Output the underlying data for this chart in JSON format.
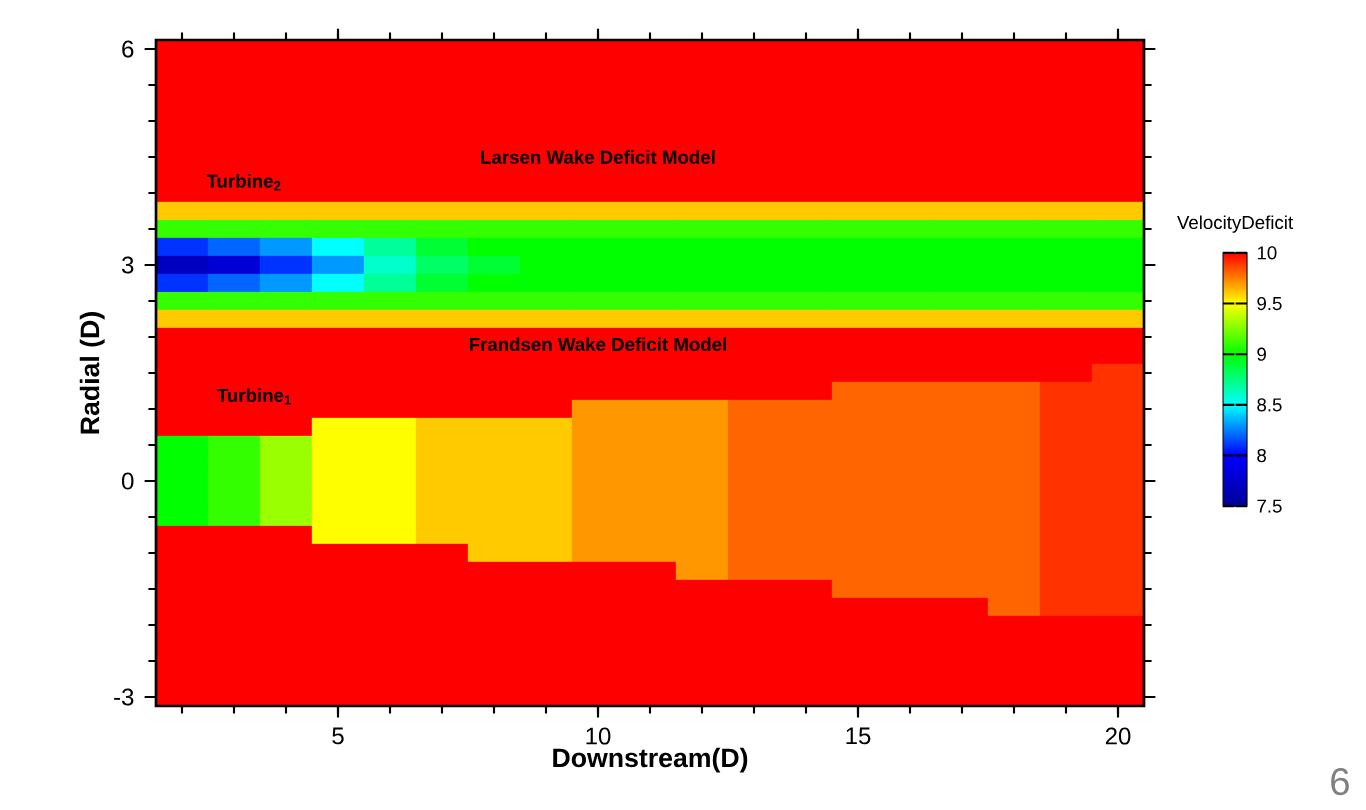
{
  "chart_data": {
    "type": "heatmap",
    "xlabel": "Downstream(D)",
    "ylabel": "Radial (D)",
    "clabel": "VelocityDeficit",
    "clim": [
      7.5,
      10
    ],
    "cticks": [
      7.5,
      8,
      8.5,
      9,
      9.5,
      10
    ],
    "categories": [
      null,
      null,
      null,
      "5",
      null,
      null,
      null,
      null,
      "10",
      null,
      null,
      null,
      null,
      "15",
      null,
      null,
      null,
      null,
      "20"
    ],
    "y_categories": [
      "6",
      null,
      null,
      null,
      null,
      null,
      null,
      null,
      null,
      null,
      null,
      null,
      "3",
      null,
      null,
      null,
      null,
      null,
      null,
      null,
      null,
      null,
      null,
      null,
      "0",
      null,
      null,
      null,
      null,
      null,
      null,
      null,
      null,
      null,
      null,
      null,
      "-3"
    ],
    "cells": [
      [
        10,
        10,
        10,
        10,
        10,
        10,
        10,
        10,
        10,
        10,
        10,
        10,
        10,
        10,
        10,
        10,
        10,
        10,
        10
      ],
      [
        10,
        10,
        10,
        10,
        10,
        10,
        10,
        10,
        10,
        10,
        10,
        10,
        10,
        10,
        10,
        10,
        10,
        10,
        10
      ],
      [
        10,
        10,
        10,
        10,
        10,
        10,
        10,
        10,
        10,
        10,
        10,
        10,
        10,
        10,
        10,
        10,
        10,
        10,
        10
      ],
      [
        10,
        10,
        10,
        10,
        10,
        10,
        10,
        10,
        10,
        10,
        10,
        10,
        10,
        10,
        10,
        10,
        10,
        10,
        10
      ],
      [
        10,
        10,
        10,
        10,
        10,
        10,
        10,
        10,
        10,
        10,
        10,
        10,
        10,
        10,
        10,
        10,
        10,
        10,
        10
      ],
      [
        10,
        10,
        10,
        10,
        10,
        10,
        10,
        10,
        10,
        10,
        10,
        10,
        10,
        10,
        10,
        10,
        10,
        10,
        10
      ],
      [
        10,
        10,
        10,
        10,
        10,
        10,
        10,
        10,
        10,
        10,
        10,
        10,
        10,
        10,
        10,
        10,
        10,
        10,
        10
      ],
      [
        10,
        10,
        10,
        10,
        10,
        10,
        10,
        10,
        10,
        10,
        10,
        10,
        10,
        10,
        10,
        10,
        10,
        10,
        10
      ],
      [
        10,
        10,
        10,
        10,
        10,
        10,
        10,
        10,
        10,
        10,
        10,
        10,
        10,
        10,
        10,
        10,
        10,
        10,
        10
      ],
      [
        9.6,
        9.6,
        9.6,
        9.6,
        9.6,
        9.6,
        9.6,
        9.6,
        9.6,
        9.6,
        9.6,
        9.6,
        9.6,
        9.6,
        9.6,
        9.6,
        9.6,
        9.6,
        9.6
      ],
      [
        9.1,
        9.1,
        9.1,
        9.1,
        9.1,
        9.1,
        9.1,
        9.1,
        9.1,
        9.1,
        9.1,
        9.1,
        9.1,
        9.1,
        9.1,
        9.1,
        9.1,
        9.1,
        9.1
      ],
      [
        8.1,
        8.2,
        8.3,
        8.5,
        8.7,
        8.9,
        9,
        9,
        9,
        9,
        9,
        9,
        9,
        9,
        9,
        9,
        9,
        9,
        9
      ],
      [
        7.7,
        7.8,
        8.1,
        8.3,
        8.6,
        8.8,
        8.9,
        9,
        9,
        9,
        9,
        9,
        9,
        9,
        9,
        9,
        9,
        9,
        9
      ],
      [
        8.1,
        8.2,
        8.3,
        8.5,
        8.7,
        8.9,
        9,
        9,
        9,
        9,
        9,
        9,
        9,
        9,
        9,
        9,
        9,
        9,
        9
      ],
      [
        9.1,
        9.1,
        9.1,
        9.1,
        9.1,
        9.1,
        9.1,
        9.1,
        9.1,
        9.1,
        9.1,
        9.1,
        9.1,
        9.1,
        9.1,
        9.1,
        9.1,
        9.1,
        9.1
      ],
      [
        9.6,
        9.6,
        9.6,
        9.6,
        9.6,
        9.6,
        9.6,
        9.6,
        9.6,
        9.6,
        9.6,
        9.6,
        9.6,
        9.6,
        9.6,
        9.6,
        9.6,
        9.6,
        9.6
      ],
      [
        10,
        10,
        10,
        10,
        10,
        10,
        10,
        10,
        10,
        10,
        10,
        10,
        10,
        10,
        10,
        10,
        10,
        10,
        10
      ],
      [
        10,
        10,
        10,
        10,
        10,
        10,
        10,
        10,
        10,
        10,
        10,
        10,
        10,
        10,
        10,
        10,
        10,
        10,
        10
      ],
      [
        10,
        10,
        10,
        10,
        10,
        10,
        10,
        10,
        10,
        10,
        10,
        10,
        10,
        10,
        10,
        10,
        10,
        10,
        9.9
      ],
      [
        10,
        10,
        10,
        10,
        10,
        10,
        10,
        10,
        10,
        10,
        10,
        10,
        10,
        9.8,
        9.8,
        9.8,
        9.8,
        9.9,
        9.9
      ],
      [
        10,
        10,
        10,
        10,
        10,
        10,
        10,
        10,
        9.7,
        9.7,
        9.7,
        9.8,
        9.8,
        9.8,
        9.8,
        9.8,
        9.8,
        9.9,
        9.9
      ],
      [
        10,
        10,
        10,
        9.5,
        9.5,
        9.6,
        9.6,
        9.6,
        9.7,
        9.7,
        9.7,
        9.8,
        9.8,
        9.8,
        9.8,
        9.8,
        9.8,
        9.9,
        9.9
      ],
      [
        9,
        9.1,
        9.3,
        9.5,
        9.5,
        9.6,
        9.6,
        9.6,
        9.7,
        9.7,
        9.7,
        9.8,
        9.8,
        9.8,
        9.8,
        9.8,
        9.8,
        9.9,
        9.9
      ],
      [
        9,
        9.1,
        9.3,
        9.5,
        9.5,
        9.6,
        9.6,
        9.6,
        9.7,
        9.7,
        9.7,
        9.8,
        9.8,
        9.8,
        9.8,
        9.8,
        9.8,
        9.9,
        9.9
      ],
      [
        9,
        9.1,
        9.3,
        9.5,
        9.5,
        9.6,
        9.6,
        9.6,
        9.7,
        9.7,
        9.7,
        9.8,
        9.8,
        9.8,
        9.8,
        9.8,
        9.8,
        9.9,
        9.9
      ],
      [
        9,
        9.1,
        9.3,
        9.5,
        9.5,
        9.6,
        9.6,
        9.6,
        9.7,
        9.7,
        9.7,
        9.8,
        9.8,
        9.8,
        9.8,
        9.8,
        9.8,
        9.9,
        9.9
      ],
      [
        9,
        9.1,
        9.3,
        9.5,
        9.5,
        9.6,
        9.6,
        9.6,
        9.7,
        9.7,
        9.7,
        9.8,
        9.8,
        9.8,
        9.8,
        9.8,
        9.8,
        9.9,
        9.9
      ],
      [
        10,
        10,
        10,
        9.5,
        9.5,
        9.6,
        9.6,
        9.6,
        9.7,
        9.7,
        9.7,
        9.8,
        9.8,
        9.8,
        9.8,
        9.8,
        9.8,
        9.9,
        9.9
      ],
      [
        10,
        10,
        10,
        10,
        10,
        10,
        9.6,
        9.6,
        9.7,
        9.7,
        9.7,
        9.8,
        9.8,
        9.8,
        9.8,
        9.8,
        9.8,
        9.9,
        9.9
      ],
      [
        10,
        10,
        10,
        10,
        10,
        10,
        10,
        10,
        10,
        10,
        9.7,
        9.8,
        9.8,
        9.8,
        9.8,
        9.8,
        9.8,
        9.9,
        9.9
      ],
      [
        10,
        10,
        10,
        10,
        10,
        10,
        10,
        10,
        10,
        10,
        10,
        10,
        10,
        9.8,
        9.8,
        9.8,
        9.8,
        9.9,
        9.9
      ],
      [
        10,
        10,
        10,
        10,
        10,
        10,
        10,
        10,
        10,
        10,
        10,
        10,
        10,
        10,
        10,
        10,
        9.8,
        9.9,
        9.9
      ],
      [
        10,
        10,
        10,
        10,
        10,
        10,
        10,
        10,
        10,
        10,
        10,
        10,
        10,
        10,
        10,
        10,
        10,
        10,
        10
      ],
      [
        10,
        10,
        10,
        10,
        10,
        10,
        10,
        10,
        10,
        10,
        10,
        10,
        10,
        10,
        10,
        10,
        10,
        10,
        10
      ],
      [
        10,
        10,
        10,
        10,
        10,
        10,
        10,
        10,
        10,
        10,
        10,
        10,
        10,
        10,
        10,
        10,
        10,
        10,
        10
      ],
      [
        10,
        10,
        10,
        10,
        10,
        10,
        10,
        10,
        10,
        10,
        10,
        10,
        10,
        10,
        10,
        10,
        10,
        10,
        10
      ],
      [
        10,
        10,
        10,
        10,
        10,
        10,
        10,
        10,
        10,
        10,
        10,
        10,
        10,
        10,
        10,
        10,
        10,
        10,
        10
      ]
    ],
    "annotations": [
      "Larsen Wake Deficit Model",
      "Frandsen Wake Deficit Model",
      "Turbine$_{2}$",
      "Turbine$_{1}$",
      "6"
    ]
  }
}
